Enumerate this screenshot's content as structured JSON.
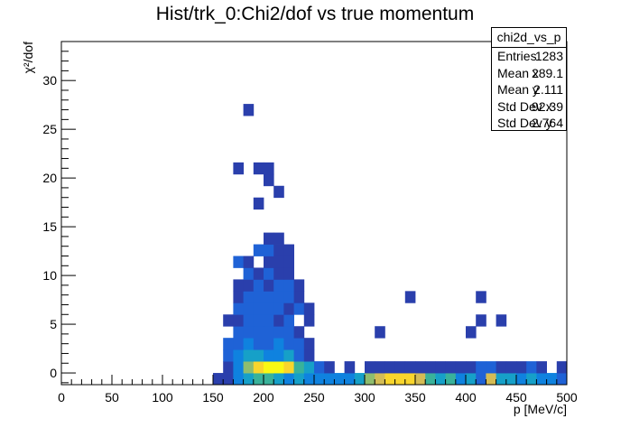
{
  "title": "Hist/trk_0:Chi2/dof vs true momentum",
  "stats": {
    "name": "chi2d_vs_p",
    "rows": [
      {
        "label": "Entries",
        "value": "1283"
      },
      {
        "label": "Mean x",
        "value": "289.1"
      },
      {
        "label": "Mean y",
        "value": "2.111"
      },
      {
        "label": "Std Dev x",
        "value": "92.39"
      },
      {
        "label": "Std Dev y",
        "value": "2.764"
      }
    ]
  },
  "chart_data": {
    "type": "heatmap",
    "title": "Hist/trk_0:Chi2/dof vs true momentum",
    "xlabel": "p [MeV/c]",
    "ylabel": "χ²/dof",
    "xlim": [
      0,
      500
    ],
    "ylim": [
      -1.2,
      34
    ],
    "x_ticks": [
      0,
      50,
      100,
      150,
      200,
      250,
      300,
      350,
      400,
      450,
      500
    ],
    "y_ticks": [
      0,
      5,
      10,
      15,
      20,
      25,
      30
    ],
    "bin_width_x": 10,
    "bin_height_y": 1.2,
    "colormap": [
      "#2a3fac",
      "#1f62d6",
      "#0f82df",
      "#16a0c8",
      "#39b29a",
      "#8fbd6e",
      "#d4bc55",
      "#f9d52c",
      "#f9f913"
    ],
    "cells": [
      [
        150,
        -1.2,
        1
      ],
      [
        160,
        -1.2,
        1
      ],
      [
        170,
        -1.2,
        3
      ],
      [
        180,
        -1.2,
        4
      ],
      [
        190,
        -1.2,
        5
      ],
      [
        200,
        -1.2,
        5
      ],
      [
        210,
        -1.2,
        4
      ],
      [
        220,
        -1.2,
        3
      ],
      [
        230,
        -1.2,
        4
      ],
      [
        240,
        -1.2,
        3
      ],
      [
        250,
        -1.2,
        3
      ],
      [
        260,
        -1.2,
        3
      ],
      [
        270,
        -1.2,
        3
      ],
      [
        280,
        -1.2,
        3
      ],
      [
        290,
        -1.2,
        4
      ],
      [
        300,
        -1.2,
        6
      ],
      [
        310,
        -1.2,
        7
      ],
      [
        320,
        -1.2,
        8
      ],
      [
        330,
        -1.2,
        8
      ],
      [
        340,
        -1.2,
        8
      ],
      [
        350,
        -1.2,
        7
      ],
      [
        360,
        -1.2,
        5
      ],
      [
        370,
        -1.2,
        4
      ],
      [
        380,
        -1.2,
        5
      ],
      [
        390,
        -1.2,
        3
      ],
      [
        400,
        -1.2,
        4
      ],
      [
        410,
        -1.2,
        2
      ],
      [
        420,
        -1.2,
        7
      ],
      [
        430,
        -1.2,
        4
      ],
      [
        440,
        -1.2,
        4
      ],
      [
        450,
        -1.2,
        3
      ],
      [
        460,
        -1.2,
        4
      ],
      [
        470,
        -1.2,
        3
      ],
      [
        480,
        -1.2,
        3
      ],
      [
        490,
        -1.2,
        2
      ],
      [
        160,
        0,
        1
      ],
      [
        170,
        0,
        3
      ],
      [
        180,
        0,
        6
      ],
      [
        190,
        0,
        8
      ],
      [
        200,
        0,
        9
      ],
      [
        210,
        0,
        9
      ],
      [
        220,
        0,
        8
      ],
      [
        230,
        0,
        5
      ],
      [
        240,
        0,
        4
      ],
      [
        250,
        0,
        2
      ],
      [
        260,
        0,
        1
      ],
      [
        280,
        0,
        1
      ],
      [
        300,
        0,
        1
      ],
      [
        310,
        0,
        1
      ],
      [
        320,
        0,
        1
      ],
      [
        330,
        0,
        1
      ],
      [
        340,
        0,
        1
      ],
      [
        350,
        0,
        1
      ],
      [
        360,
        0,
        1
      ],
      [
        370,
        0,
        1
      ],
      [
        380,
        0,
        1
      ],
      [
        390,
        0,
        1
      ],
      [
        400,
        0,
        1
      ],
      [
        410,
        0,
        2
      ],
      [
        420,
        0,
        2
      ],
      [
        430,
        0,
        1
      ],
      [
        440,
        0,
        1
      ],
      [
        450,
        0,
        1
      ],
      [
        460,
        0,
        2
      ],
      [
        470,
        0,
        1
      ],
      [
        490,
        0,
        1
      ],
      [
        160,
        1.2,
        2
      ],
      [
        170,
        1.2,
        3
      ],
      [
        180,
        1.2,
        4
      ],
      [
        190,
        1.2,
        4
      ],
      [
        200,
        1.2,
        3
      ],
      [
        210,
        1.2,
        3
      ],
      [
        220,
        1.2,
        4
      ],
      [
        230,
        1.2,
        2
      ],
      [
        240,
        1.2,
        1
      ],
      [
        160,
        2.4,
        2
      ],
      [
        170,
        2.4,
        2
      ],
      [
        180,
        2.4,
        3
      ],
      [
        190,
        2.4,
        2
      ],
      [
        200,
        2.4,
        2
      ],
      [
        210,
        2.4,
        3
      ],
      [
        220,
        2.4,
        2
      ],
      [
        230,
        2.4,
        2
      ],
      [
        240,
        2.4,
        1
      ],
      [
        170,
        3.6,
        2
      ],
      [
        180,
        3.6,
        2
      ],
      [
        190,
        3.6,
        2
      ],
      [
        200,
        3.6,
        2
      ],
      [
        210,
        3.6,
        2
      ],
      [
        220,
        3.6,
        2
      ],
      [
        230,
        3.6,
        1
      ],
      [
        310,
        3.6,
        1
      ],
      [
        400,
        3.6,
        1
      ],
      [
        160,
        4.8,
        1
      ],
      [
        170,
        4.8,
        1
      ],
      [
        180,
        4.8,
        2
      ],
      [
        190,
        4.8,
        2
      ],
      [
        200,
        4.8,
        2
      ],
      [
        210,
        4.8,
        1
      ],
      [
        220,
        4.8,
        2
      ],
      [
        240,
        4.8,
        1
      ],
      [
        410,
        4.8,
        1
      ],
      [
        430,
        4.8,
        1
      ],
      [
        170,
        6.0,
        2
      ],
      [
        180,
        6.0,
        2
      ],
      [
        190,
        6.0,
        2
      ],
      [
        200,
        6.0,
        2
      ],
      [
        210,
        6.0,
        2
      ],
      [
        220,
        6.0,
        1
      ],
      [
        230,
        6.0,
        2
      ],
      [
        240,
        6.0,
        1
      ],
      [
        170,
        7.2,
        1
      ],
      [
        180,
        7.2,
        2
      ],
      [
        190,
        7.2,
        2
      ],
      [
        200,
        7.2,
        2
      ],
      [
        210,
        7.2,
        2
      ],
      [
        220,
        7.2,
        2
      ],
      [
        230,
        7.2,
        1
      ],
      [
        340,
        7.2,
        1
      ],
      [
        410,
        7.2,
        1
      ],
      [
        170,
        8.4,
        1
      ],
      [
        180,
        8.4,
        1
      ],
      [
        190,
        8.4,
        2
      ],
      [
        200,
        8.4,
        1
      ],
      [
        210,
        8.4,
        2
      ],
      [
        220,
        8.4,
        2
      ],
      [
        230,
        8.4,
        1
      ],
      [
        180,
        9.6,
        2
      ],
      [
        190,
        9.6,
        1
      ],
      [
        200,
        9.6,
        2
      ],
      [
        210,
        9.6,
        1
      ],
      [
        220,
        9.6,
        1
      ],
      [
        170,
        10.8,
        2
      ],
      [
        180,
        10.8,
        1
      ],
      [
        200,
        10.8,
        1
      ],
      [
        210,
        10.8,
        1
      ],
      [
        220,
        10.8,
        1
      ],
      [
        190,
        12.0,
        2
      ],
      [
        200,
        12.0,
        2
      ],
      [
        210,
        12.0,
        1
      ],
      [
        220,
        12.0,
        1
      ],
      [
        200,
        13.2,
        1
      ],
      [
        210,
        13.2,
        1
      ],
      [
        190,
        16.8,
        1
      ],
      [
        210,
        18.0,
        1
      ],
      [
        200,
        19.2,
        1
      ],
      [
        170,
        20.4,
        1
      ],
      [
        190,
        20.4,
        1
      ],
      [
        200,
        20.4,
        1
      ],
      [
        180,
        26.4,
        1
      ]
    ]
  }
}
